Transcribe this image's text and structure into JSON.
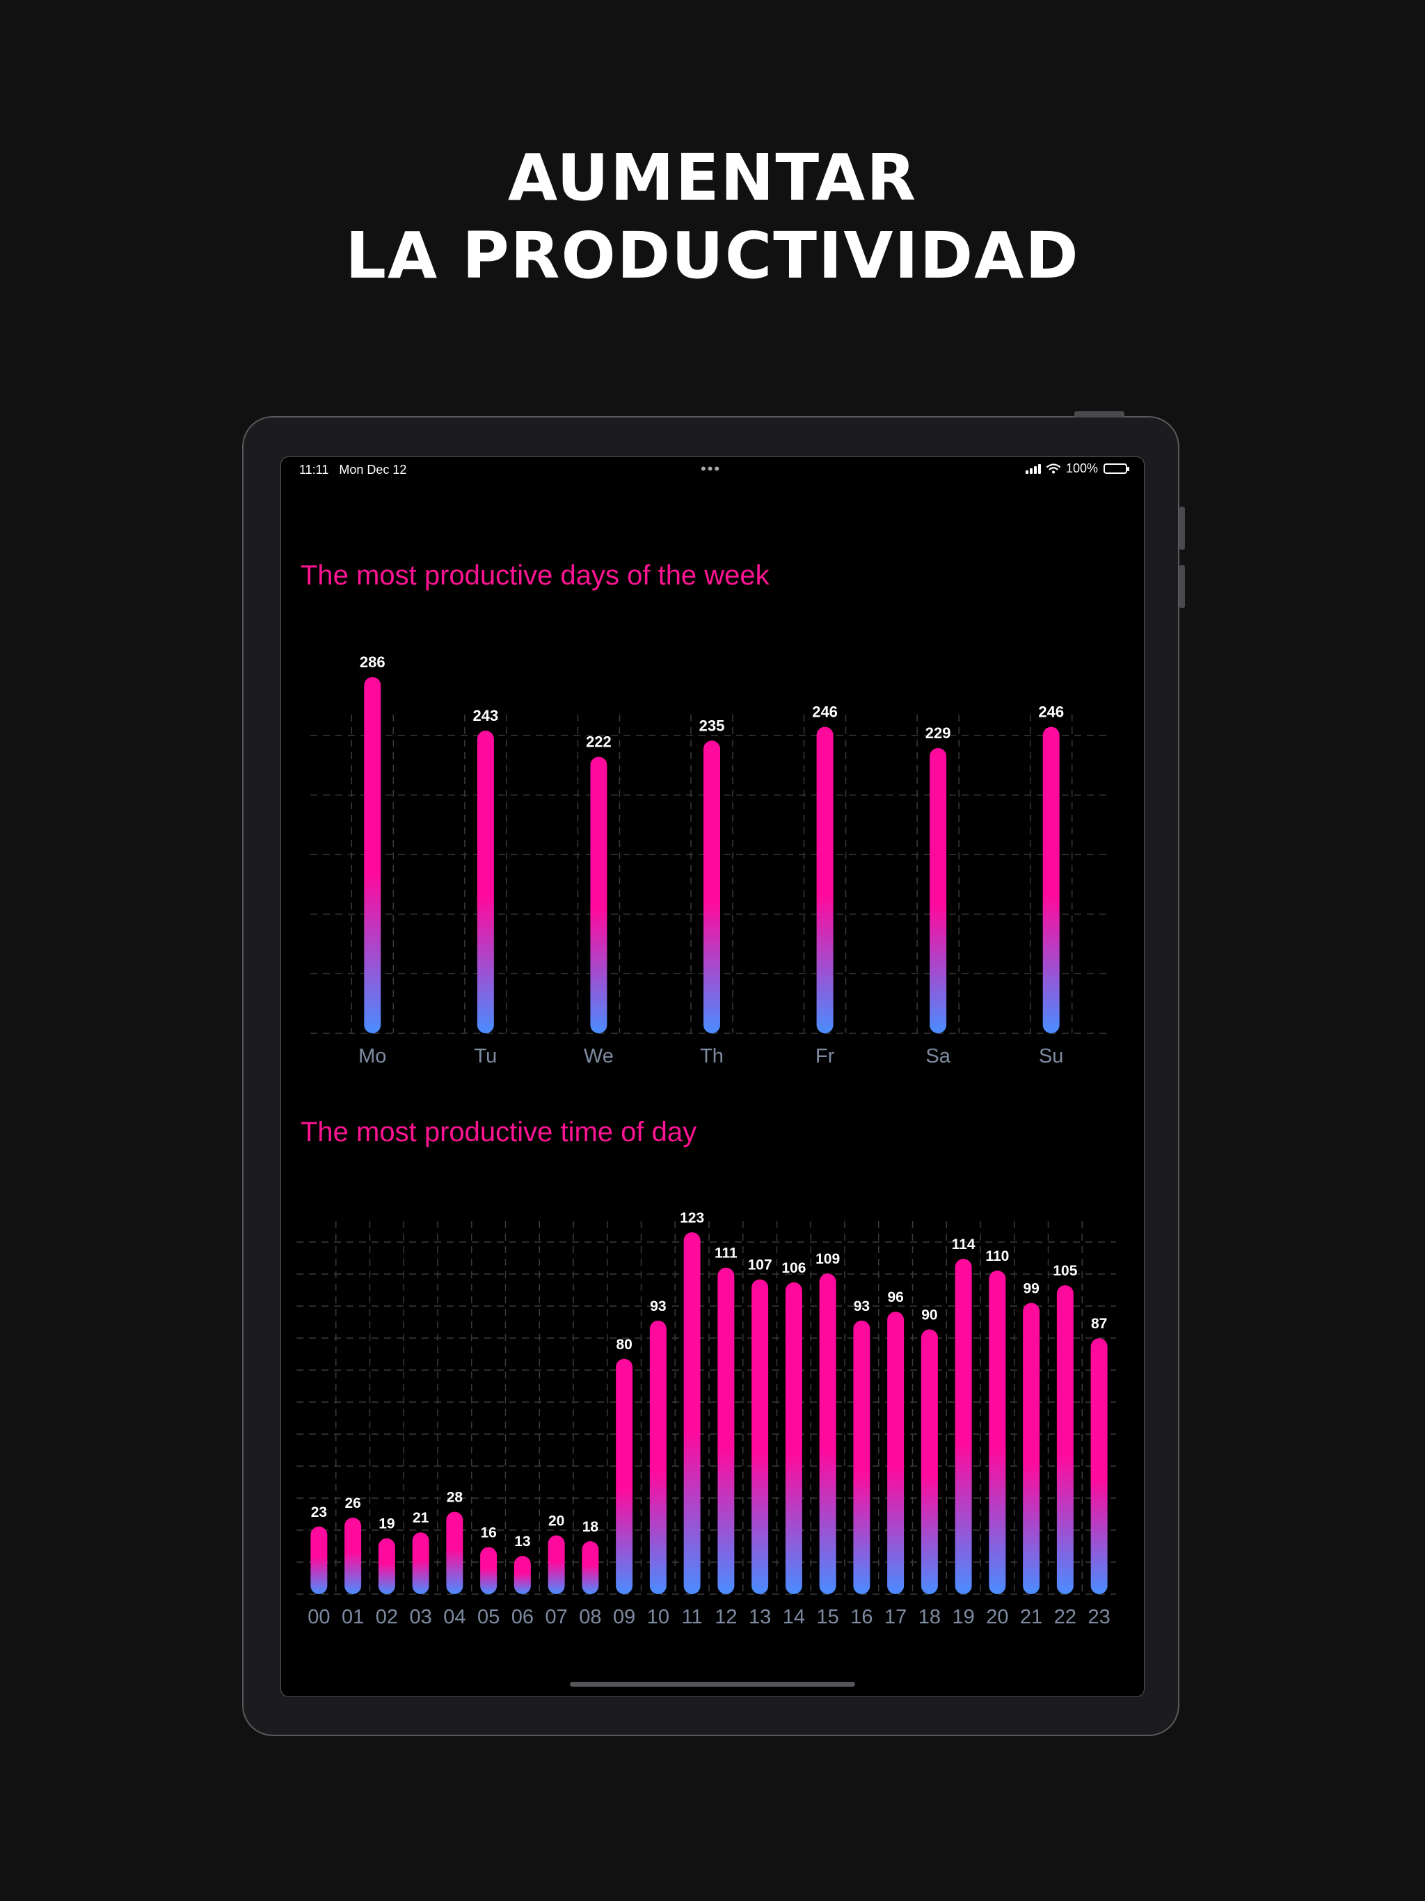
{
  "headline": {
    "line1": "AUMENTAR",
    "line2": "LA PRODUCTIVIDAD"
  },
  "status_bar": {
    "time": "11:11",
    "date": "Mon Dec 12",
    "battery": "100%"
  },
  "colors": {
    "bar_top": "#ff0a9c",
    "bar_bottom": "#4a8dff",
    "title": "#ff1493",
    "axis_label": "#7d8aa0"
  },
  "icons": {
    "signal": "signal-icon",
    "wifi": "wifi-icon",
    "battery": "battery-icon",
    "more": "more-dots-icon"
  },
  "chart_data": [
    {
      "type": "bar",
      "title": "The most productive days of the week",
      "categories": [
        "Mo",
        "Tu",
        "We",
        "Th",
        "Fr",
        "Sa",
        "Su"
      ],
      "values": [
        286,
        243,
        222,
        235,
        246,
        229,
        246
      ],
      "ylim": [
        0,
        286
      ],
      "grid": true
    },
    {
      "type": "bar",
      "title": "The most productive time of day",
      "categories": [
        "00",
        "01",
        "02",
        "03",
        "04",
        "05",
        "06",
        "07",
        "08",
        "09",
        "10",
        "11",
        "12",
        "13",
        "14",
        "15",
        "16",
        "17",
        "18",
        "19",
        "20",
        "21",
        "22",
        "23"
      ],
      "values": [
        23,
        26,
        19,
        21,
        28,
        16,
        13,
        20,
        18,
        80,
        93,
        123,
        111,
        107,
        106,
        109,
        93,
        96,
        90,
        114,
        110,
        99,
        105,
        87
      ],
      "ylim": [
        0,
        123
      ],
      "grid": true
    }
  ]
}
